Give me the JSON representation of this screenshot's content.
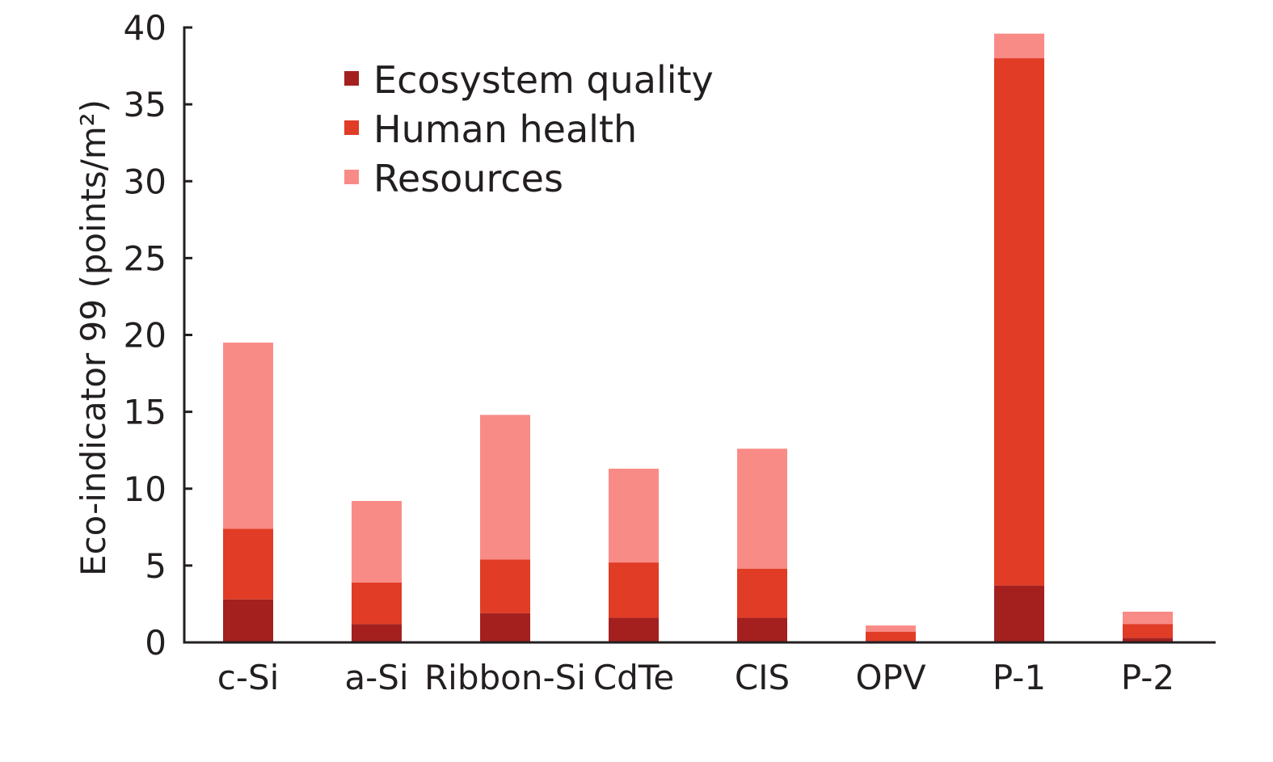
{
  "chart_data": {
    "type": "bar",
    "stacked": true,
    "categories": [
      "c-Si",
      "a-Si",
      "Ribbon-Si",
      "CdTe",
      "CIS",
      "OPV",
      "P-1",
      "P-2"
    ],
    "series": [
      {
        "name": "Ecosystem quality",
        "color": "#a3201f",
        "values": [
          2.8,
          1.2,
          1.9,
          1.6,
          1.6,
          0.1,
          3.7,
          0.3
        ]
      },
      {
        "name": "Human health",
        "color": "#e03c26",
        "values": [
          4.6,
          2.7,
          3.5,
          3.6,
          3.2,
          0.6,
          34.3,
          0.9
        ]
      },
      {
        "name": "Resources",
        "color": "#f98b87",
        "values": [
          12.1,
          5.3,
          9.4,
          6.1,
          7.8,
          0.4,
          1.6,
          0.8
        ]
      }
    ],
    "xlabel": "",
    "ylabel": "Eco-indicator 99 (points/m²)",
    "ylim": [
      0,
      40
    ],
    "yticks": [
      "0",
      "5",
      "10",
      "15",
      "20",
      "25",
      "30",
      "35",
      "40"
    ],
    "grid": false,
    "legend": "top-center"
  }
}
